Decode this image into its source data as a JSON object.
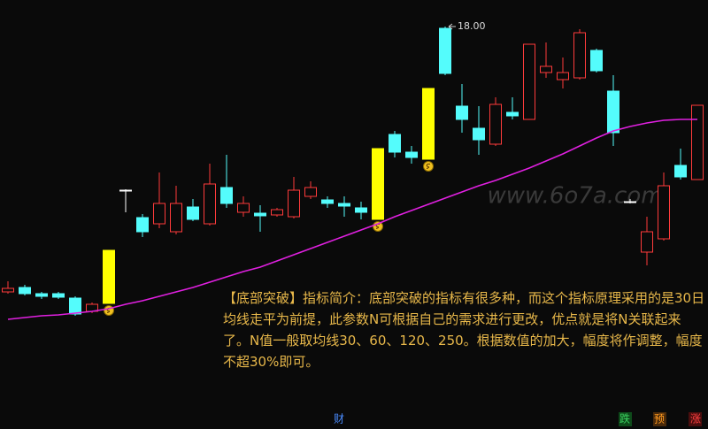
{
  "chart_data": {
    "type": "candlestick",
    "ylim": [
      9.4,
      18.6
    ],
    "open": [
      12.0,
      12.1,
      11.96,
      11.96,
      11.86,
      11.56,
      11.74,
      14.3,
      13.68,
      13.54,
      13.36,
      13.92,
      13.54,
      14.36,
      13.8,
      13.78,
      13.74,
      13.7,
      14.16,
      14.08,
      14.0,
      13.9,
      13.64,
      15.56,
      15.16,
      15.0,
      17.96,
      16.2,
      15.7,
      15.34,
      16.06,
      15.9,
      16.96,
      16.8,
      16.84,
      17.46,
      16.54,
      14.04,
      12.9,
      13.2,
      14.86,
      14.54
    ],
    "high": [
      12.24,
      12.16,
      12.0,
      12.0,
      11.9,
      11.76,
      12.94,
      14.32,
      13.76,
      14.7,
      14.4,
      14.1,
      14.9,
      15.1,
      14.16,
      13.96,
      13.9,
      14.6,
      14.5,
      14.16,
      14.16,
      14.04,
      15.24,
      15.64,
      15.3,
      16.6,
      18.0,
      16.7,
      16.2,
      16.4,
      16.4,
      17.6,
      17.64,
      17.3,
      17.94,
      17.5,
      16.9,
      14.1,
      13.7,
      14.7,
      15.24,
      16.22
    ],
    "low": [
      11.96,
      11.92,
      11.84,
      11.84,
      11.46,
      11.52,
      11.74,
      13.8,
      13.24,
      13.44,
      13.3,
      13.6,
      13.5,
      13.9,
      13.7,
      13.36,
      13.7,
      13.66,
      14.1,
      13.9,
      13.7,
      13.64,
      13.64,
      15.04,
      14.9,
      15.0,
      16.9,
      15.6,
      15.1,
      15.3,
      15.9,
      15.9,
      16.84,
      16.6,
      16.8,
      16.96,
      15.3,
      14.0,
      12.6,
      13.16,
      14.54,
      14.54
    ],
    "close": [
      12.08,
      11.96,
      11.9,
      11.88,
      11.5,
      11.72,
      12.94,
      14.3,
      13.36,
      14.0,
      14.0,
      13.64,
      14.44,
      14.0,
      14.0,
      13.72,
      13.86,
      14.3,
      14.36,
      14.0,
      13.94,
      13.8,
      15.24,
      15.16,
      15.04,
      16.6,
      16.94,
      15.9,
      15.44,
      16.24,
      15.98,
      17.6,
      17.1,
      16.96,
      17.86,
      17.0,
      15.6,
      14.04,
      13.36,
      14.4,
      14.6,
      16.22
    ],
    "colors": [
      "#ff3b3b",
      "#54fcfc",
      "#54fcfc",
      "#54fcfc",
      "#54fcfc",
      "#ff3b3b",
      "#ffff00",
      "#ffffff",
      "#54fcfc",
      "#ff3b3b",
      "#ff3b3b",
      "#54fcfc",
      "#ff3b3b",
      "#54fcfc",
      "#ff3b3b",
      "#54fcfc",
      "#ff3b3b",
      "#ff3b3b",
      "#ff3b3b",
      "#54fcfc",
      "#54fcfc",
      "#54fcfc",
      "#ffff00",
      "#54fcfc",
      "#54fcfc",
      "#ffff00",
      "#54fcfc",
      "#54fcfc",
      "#54fcfc",
      "#ff3b3b",
      "#54fcfc",
      "#ff3b3b",
      "#ff3b3b",
      "#ff3b3b",
      "#ff3b3b",
      "#54fcfc",
      "#54fcfc",
      "#ffffff",
      "#ff3b3b",
      "#ff3b3b",
      "#54fcfc",
      "#ff3b3b"
    ],
    "ma": {
      "color": "#e020e0",
      "values": [
        11.38,
        11.42,
        11.46,
        11.48,
        11.52,
        11.56,
        11.62,
        11.72,
        11.8,
        11.9,
        12.0,
        12.1,
        12.22,
        12.34,
        12.46,
        12.56,
        12.7,
        12.84,
        12.98,
        13.12,
        13.26,
        13.4,
        13.54,
        13.7,
        13.84,
        13.98,
        14.12,
        14.26,
        14.4,
        14.52,
        14.66,
        14.8,
        14.96,
        15.12,
        15.3,
        15.48,
        15.64,
        15.74,
        15.82,
        15.88,
        15.9,
        15.9
      ]
    },
    "high_marker": {
      "value": 18,
      "label": "18.00"
    },
    "watermark": "www.6o7a.com",
    "annotation": "【底部突破】指标简介：底部突破的指标有很多种，而这个指标原理采用的是30日均线走平为前提，此参数N可根据自己的需求进行更改，优点就是将N关联起来了。N值一般取均线30、60、120、250。根据数值的加大，幅度将作调整，幅度不超30%即可。",
    "footer_labels": [
      "财",
      "跌",
      "预",
      "涨"
    ]
  }
}
